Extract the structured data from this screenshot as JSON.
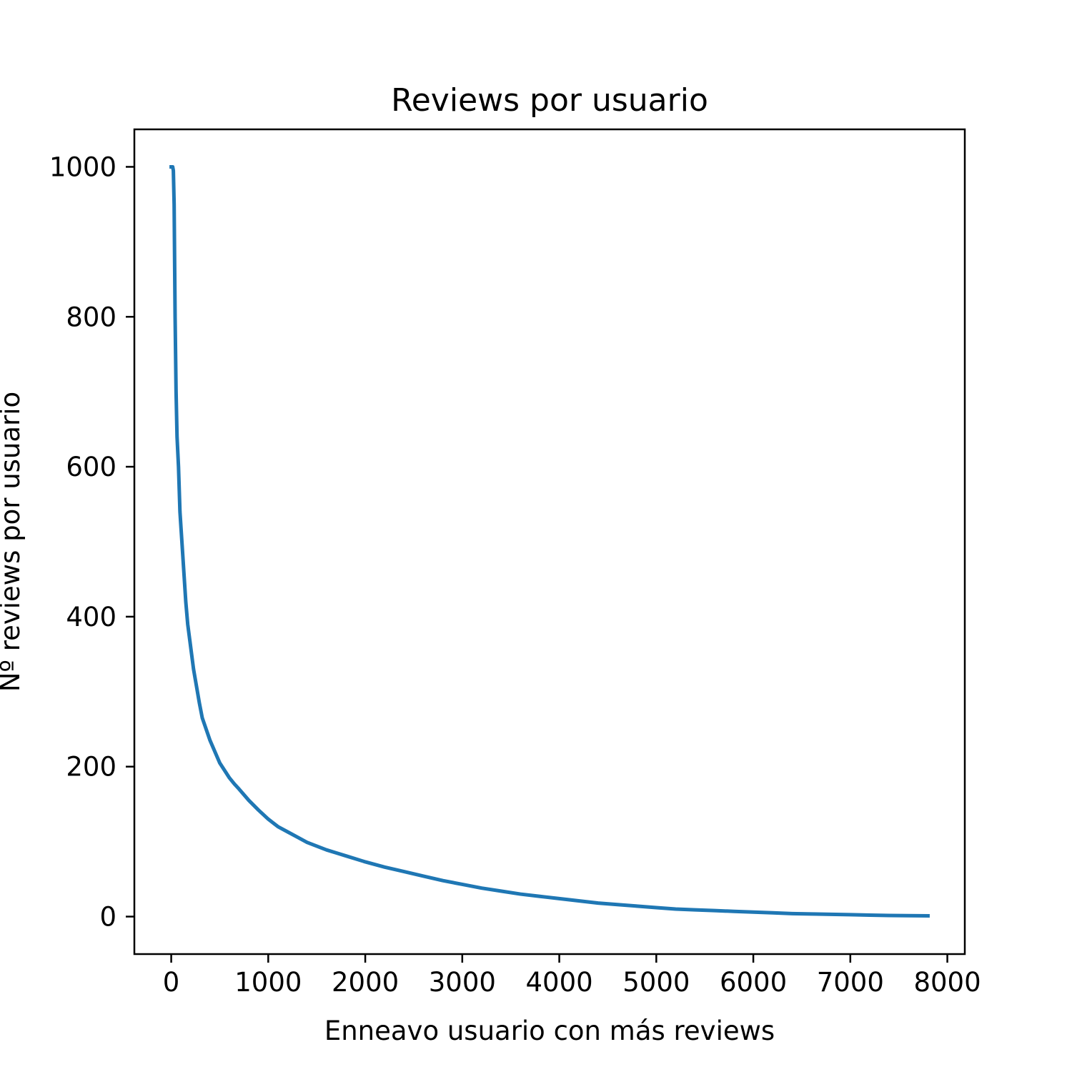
{
  "chart_data": {
    "type": "line",
    "title": "Reviews por usuario",
    "xlabel": "Enneavo usuario con más reviews",
    "ylabel": "Nº reviews por usuario",
    "xlim": [
      -380,
      8180
    ],
    "ylim": [
      -50,
      1050
    ],
    "xticks": [
      0,
      1000,
      2000,
      3000,
      4000,
      5000,
      6000,
      7000,
      8000
    ],
    "yticks": [
      0,
      200,
      400,
      600,
      800,
      1000
    ],
    "grid": false,
    "color": "#1f77b4",
    "series": [
      {
        "x": [
          0,
          15,
          22,
          30,
          40,
          50,
          60,
          75,
          90,
          110,
          130,
          150,
          170,
          190,
          210,
          230,
          250,
          270,
          290,
          320,
          360,
          400,
          450,
          500,
          550,
          600,
          650,
          700,
          800,
          900,
          1000,
          1100,
          1200,
          1300,
          1400,
          1500,
          1600,
          1700,
          1800,
          1900,
          2000,
          2200,
          2400,
          2600,
          2800,
          3000,
          3200,
          3400,
          3600,
          3800,
          4000,
          4200,
          4400,
          4600,
          4800,
          5000,
          5200,
          5400,
          5600,
          5800,
          6000,
          6200,
          6400,
          6600,
          6800,
          7000,
          7200,
          7400,
          7600,
          7800
        ],
        "y": [
          1000,
          1000,
          995,
          950,
          800,
          700,
          640,
          600,
          540,
          500,
          460,
          420,
          390,
          370,
          350,
          330,
          315,
          300,
          285,
          265,
          250,
          235,
          220,
          205,
          195,
          185,
          177,
          170,
          155,
          142,
          130,
          120,
          113,
          106,
          99,
          94,
          89,
          85,
          81,
          77,
          73,
          66,
          60,
          54,
          48,
          43,
          38,
          34,
          30,
          27,
          24,
          21,
          18,
          16,
          14,
          12,
          10,
          9,
          8,
          7,
          6,
          5,
          4,
          3.5,
          3,
          2.5,
          2,
          1.5,
          1.2,
          1
        ]
      }
    ]
  }
}
